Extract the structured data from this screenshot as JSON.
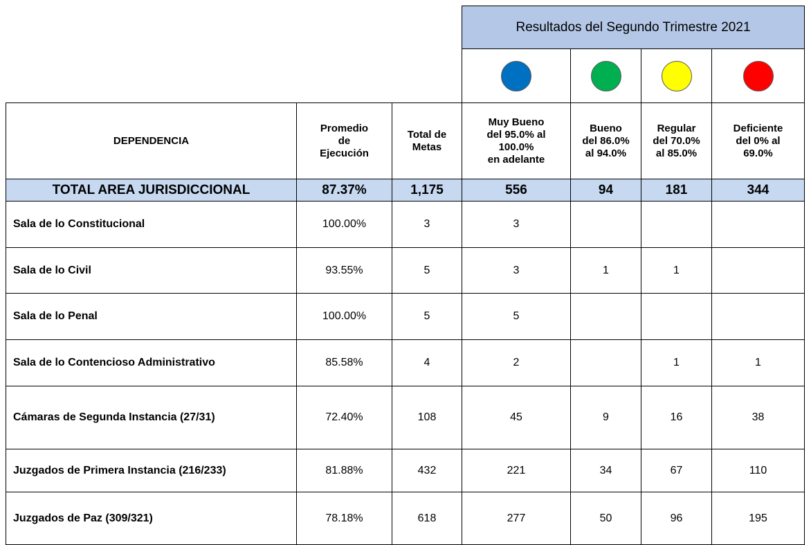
{
  "header": {
    "title": "Resultados del Segundo Trimestre 2021",
    "colors": [
      "#0070c0",
      "#00b050",
      "#ffff00",
      "#ff0000"
    ]
  },
  "table": {
    "columns": [
      [
        "DEPENDENCIA"
      ],
      [
        "Promedio",
        "de",
        "Ejecución"
      ],
      [
        "Total de",
        "Metas"
      ],
      [
        "Muy Bueno",
        "del 95.0% al",
        "100.0%",
        "en adelante"
      ],
      [
        "Bueno",
        "del 86.0%",
        "al 94.0%"
      ],
      [
        "Regular",
        "del 70.0%",
        "al 85.0%"
      ],
      [
        "Deficiente",
        "del 0% al",
        "69.0%"
      ]
    ],
    "total": [
      "TOTAL AREA JURISDICCIONAL",
      "87.37%",
      "1,175",
      "556",
      "94",
      "181",
      "344"
    ],
    "rows": [
      [
        "Sala de lo Constitucional",
        "100.00%",
        "3",
        "3",
        null,
        null,
        null
      ],
      [
        "Sala de lo Civil",
        "93.55%",
        "5",
        "3",
        "1",
        "1",
        null
      ],
      [
        "Sala de lo Penal",
        "100.00%",
        "5",
        "5",
        null,
        null,
        null
      ],
      [
        "Sala de lo Contencioso Administrativo",
        "85.58%",
        "4",
        "2",
        null,
        "1",
        "1"
      ],
      [
        "Cámaras de Segunda Instancia (27/31)",
        "72.40%",
        "108",
        "45",
        "9",
        "16",
        "38"
      ],
      [
        "Juzgados de Primera Instancia (216/233)",
        "81.88%",
        "432",
        "221",
        "34",
        "67",
        "110"
      ],
      [
        "Juzgados de Paz (309/321)",
        "78.18%",
        "618",
        "277",
        "50",
        "96",
        "195"
      ]
    ]
  }
}
